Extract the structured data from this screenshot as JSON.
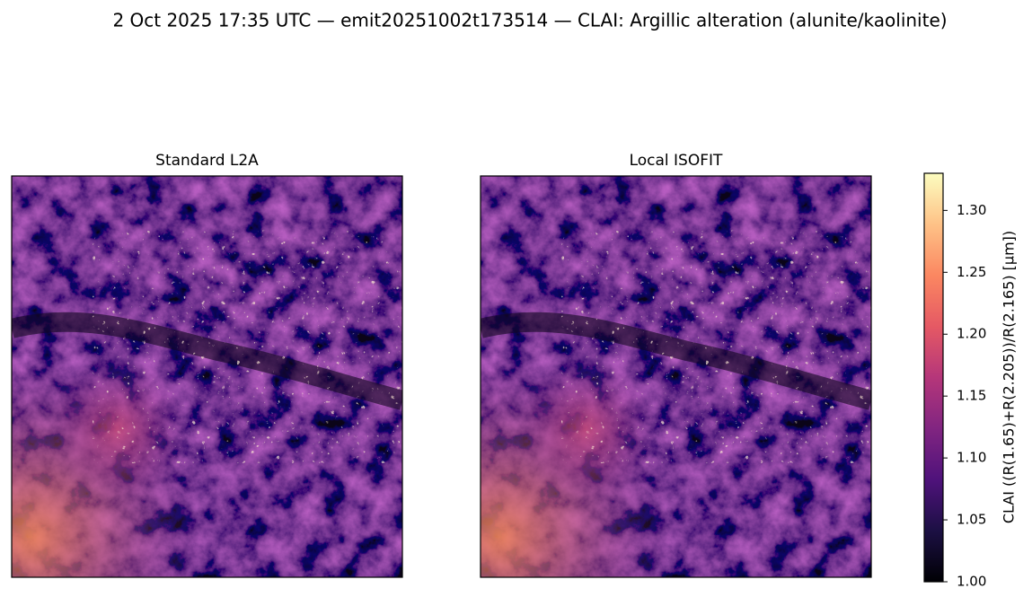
{
  "chart_data": {
    "type": "image",
    "title": "2 Oct 2025 17:35 UTC — emit20251002t173514 — CLAI: Argillic alteration (alunite/kaolinite)",
    "panels": [
      {
        "title": "Standard L2A"
      },
      {
        "title": "Local ISOFIT"
      }
    ],
    "colorbar": {
      "label": "CLAI  ((R(1.65)+R(2.205))/R(2.165)  [µm])",
      "colormap": "magma",
      "ylim": [
        1.0,
        1.33
      ],
      "yticks": [
        {
          "value": 1.0,
          "label": "1.00"
        },
        1.05,
        {
          "value": 1.1,
          "label": "1.10"
        },
        1.15,
        {
          "value": 1.2,
          "label": "1.20"
        },
        1.25,
        {
          "value": 1.3,
          "label": "1.30"
        }
      ]
    }
  }
}
